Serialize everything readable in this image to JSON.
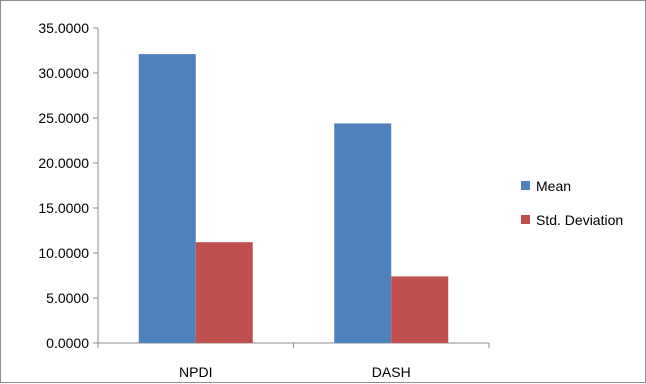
{
  "chart_data": {
    "type": "bar",
    "categories": [
      "NPDI",
      "DASH"
    ],
    "series": [
      {
        "name": "Mean",
        "values": [
          32.1,
          24.4
        ],
        "color": "#4f81bd"
      },
      {
        "name": "Std. Deviation",
        "values": [
          11.2,
          7.4
        ],
        "color": "#c0504d"
      }
    ],
    "ylim": [
      0,
      35
    ],
    "yticks": [
      "0.0000",
      "5.0000",
      "10.0000",
      "15.0000",
      "20.0000",
      "25.0000",
      "30.0000",
      "35.0000"
    ],
    "title": "",
    "xlabel": "",
    "ylabel": "",
    "legend_position": "right",
    "grid": false
  }
}
